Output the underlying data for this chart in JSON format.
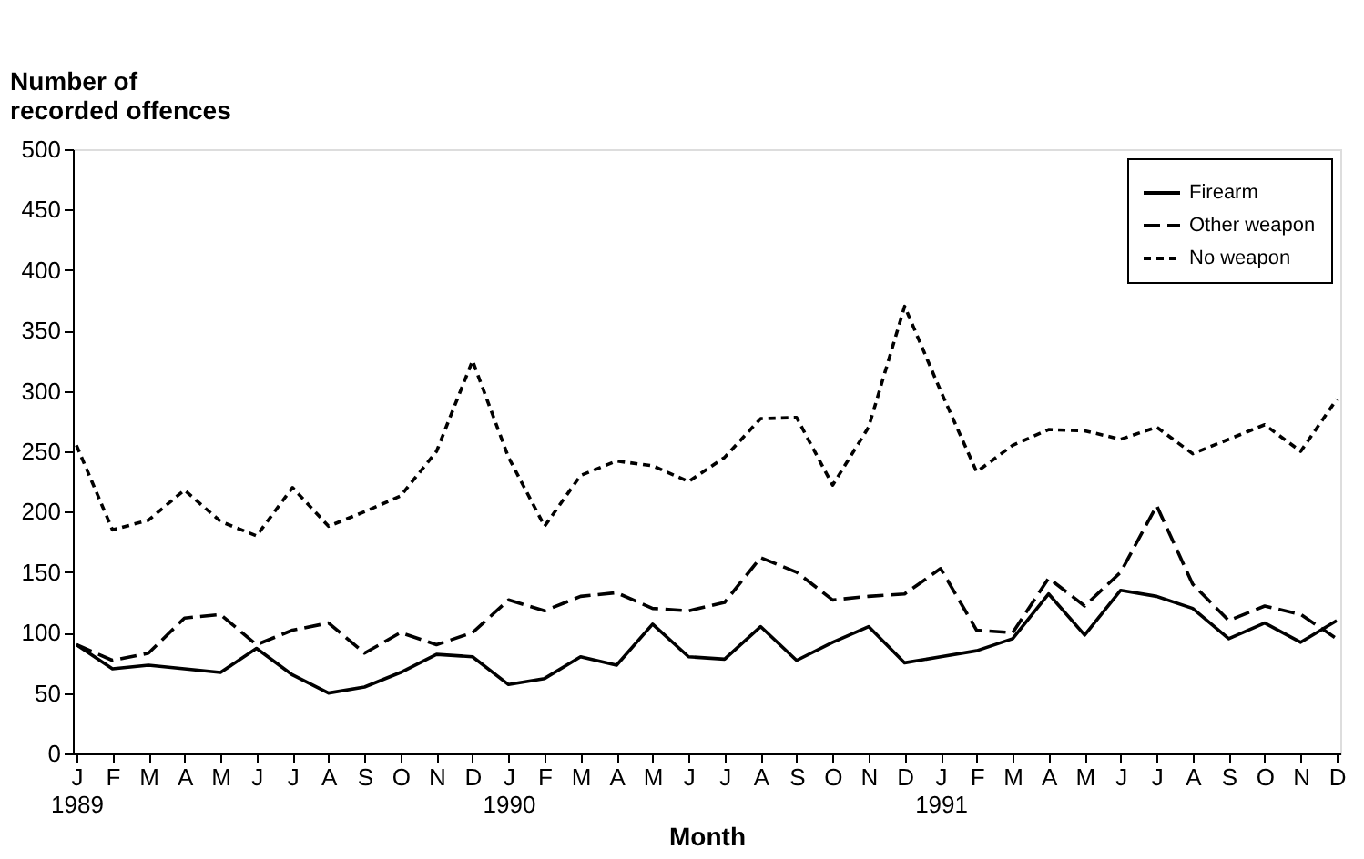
{
  "chart_data": {
    "type": "line",
    "ylabel": "Number of\nrecorded offences",
    "xlabel": "Month",
    "categories": [
      "J\n1989",
      "F",
      "M",
      "A",
      "M",
      "J",
      "J",
      "A",
      "S",
      "O",
      "N",
      "D",
      "J\n1990",
      "F",
      "M",
      "A",
      "M",
      "J",
      "J",
      "A",
      "S",
      "O",
      "N",
      "D",
      "J\n1991",
      "F",
      "M",
      "A",
      "M",
      "J",
      "J",
      "A",
      "S",
      "O",
      "N",
      "D"
    ],
    "series": [
      {
        "name": "Firearm",
        "color": "#000000",
        "line_style": "solid",
        "values": [
          90,
          70,
          73,
          70,
          67,
          87,
          65,
          50,
          55,
          67,
          82,
          80,
          57,
          62,
          80,
          73,
          107,
          80,
          78,
          105,
          77,
          92,
          105,
          75,
          80,
          85,
          95,
          132,
          98,
          135,
          130,
          120,
          95,
          108,
          92,
          110
        ]
      },
      {
        "name": "Other weapon",
        "color": "#000000",
        "line_style": "dashed",
        "values": [
          90,
          77,
          83,
          112,
          115,
          90,
          102,
          108,
          83,
          100,
          90,
          100,
          127,
          118,
          130,
          133,
          120,
          118,
          125,
          162,
          150,
          127,
          130,
          132,
          153,
          102,
          100,
          145,
          122,
          150,
          205,
          140,
          110,
          122,
          115,
          95
        ]
      },
      {
        "name": "No weapon",
        "color": "#000000",
        "line_style": "dotted",
        "values": [
          255,
          185,
          193,
          218,
          192,
          180,
          220,
          188,
          200,
          213,
          250,
          325,
          245,
          188,
          230,
          242,
          238,
          225,
          245,
          277,
          278,
          222,
          270,
          370,
          300,
          233,
          255,
          268,
          267,
          260,
          270,
          248,
          260,
          272,
          250,
          293
        ]
      }
    ],
    "ylim": [
      0,
      500
    ],
    "yticks": [
      0,
      50,
      100,
      150,
      200,
      250,
      300,
      350,
      400,
      450,
      500
    ],
    "grid": false,
    "legend": "top right"
  }
}
